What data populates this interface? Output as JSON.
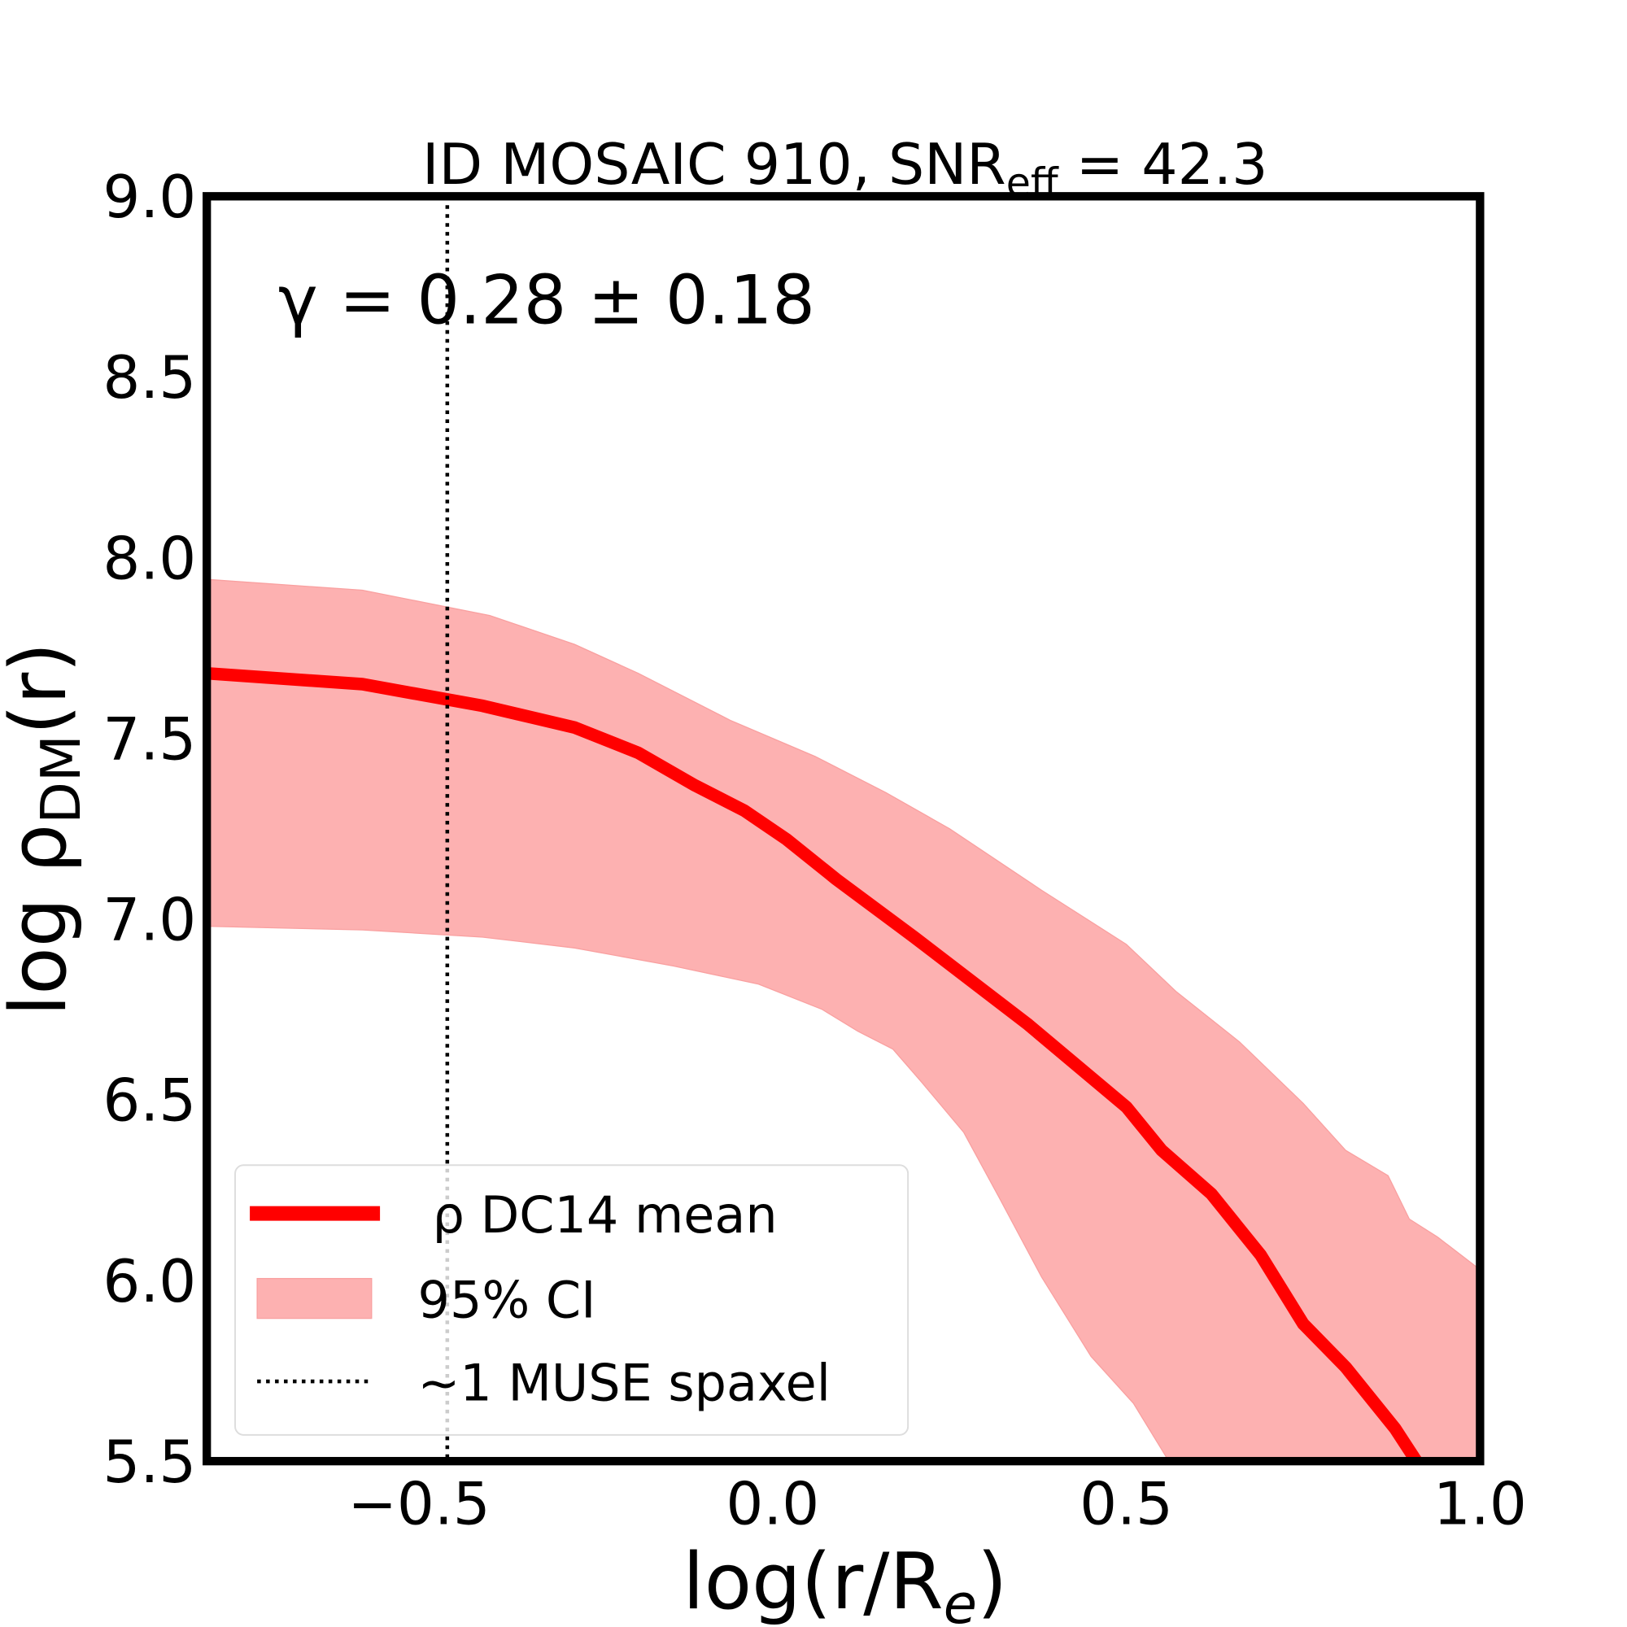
{
  "chart_data": {
    "type": "line",
    "title": "ID MOSAIC 910, SNR",
    "title_sub": "eff",
    "title_suffix": " = 42.3",
    "annotation": "γ = 0.28 ± 0.18",
    "xlabel": "log(r/R",
    "xlabel_sub": "e",
    "xlabel_suffix": ")",
    "ylabel": "log ρ",
    "ylabel_sub": "DM",
    "ylabel_suffix": "(r)",
    "xlim": [
      -0.8,
      1.0
    ],
    "ylim": [
      5.5,
      9.0
    ],
    "xticks": [
      "−0.5",
      "0.0",
      "0.5",
      "1.0"
    ],
    "xtick_values": [
      -0.5,
      0.0,
      0.5,
      1.0
    ],
    "yticks": [
      "5.5",
      "6.0",
      "6.5",
      "7.0",
      "7.5",
      "8.0",
      "8.5",
      "9.0"
    ],
    "ytick_values": [
      5.5,
      6.0,
      6.5,
      7.0,
      7.5,
      8.0,
      8.5,
      9.0
    ],
    "grid": false,
    "legend_placement": "lower-left",
    "colors": {
      "mean": "#ff0000",
      "band": "#fdb1b1",
      "spaxel": "#000000"
    },
    "series": [
      {
        "name": "ρ DC14 mean",
        "x": [
          -0.8,
          -0.58,
          -0.41,
          -0.28,
          -0.19,
          -0.11,
          -0.04,
          0.02,
          0.09,
          0.2,
          0.36,
          0.5,
          0.55,
          0.62,
          0.69,
          0.75,
          0.81,
          0.88,
          0.91
        ],
        "y": [
          7.68,
          7.65,
          7.59,
          7.53,
          7.46,
          7.37,
          7.3,
          7.22,
          7.11,
          6.95,
          6.71,
          6.48,
          6.36,
          6.24,
          6.07,
          5.88,
          5.76,
          5.59,
          5.5
        ]
      }
    ],
    "band": {
      "name": "95% CI",
      "upper": {
        "x": [
          -0.8,
          -0.58,
          -0.4,
          -0.28,
          -0.19,
          -0.06,
          0.06,
          0.16,
          0.25,
          0.38,
          0.5,
          0.57,
          0.66,
          0.75,
          0.81,
          0.87,
          0.9,
          0.94,
          1.0
        ],
        "y": [
          7.94,
          7.91,
          7.84,
          7.76,
          7.68,
          7.55,
          7.45,
          7.35,
          7.25,
          7.08,
          6.93,
          6.8,
          6.66,
          6.49,
          6.36,
          6.29,
          6.17,
          6.12,
          6.03
        ]
      },
      "lower": {
        "x": [
          -0.8,
          -0.58,
          -0.41,
          -0.28,
          -0.14,
          -0.02,
          0.07,
          0.12,
          0.17,
          0.21,
          0.27,
          0.32,
          0.38,
          0.45,
          0.51,
          0.56
        ],
        "y": [
          6.98,
          6.97,
          6.95,
          6.92,
          6.87,
          6.82,
          6.75,
          6.69,
          6.64,
          6.55,
          6.41,
          6.23,
          6.01,
          5.79,
          5.66,
          5.5
        ]
      }
    },
    "vline": {
      "name": "~1 MUSE spaxel",
      "x": -0.46
    },
    "legend": [
      "ρ DC14 mean",
      "95% CI",
      "~1 MUSE spaxel"
    ]
  }
}
